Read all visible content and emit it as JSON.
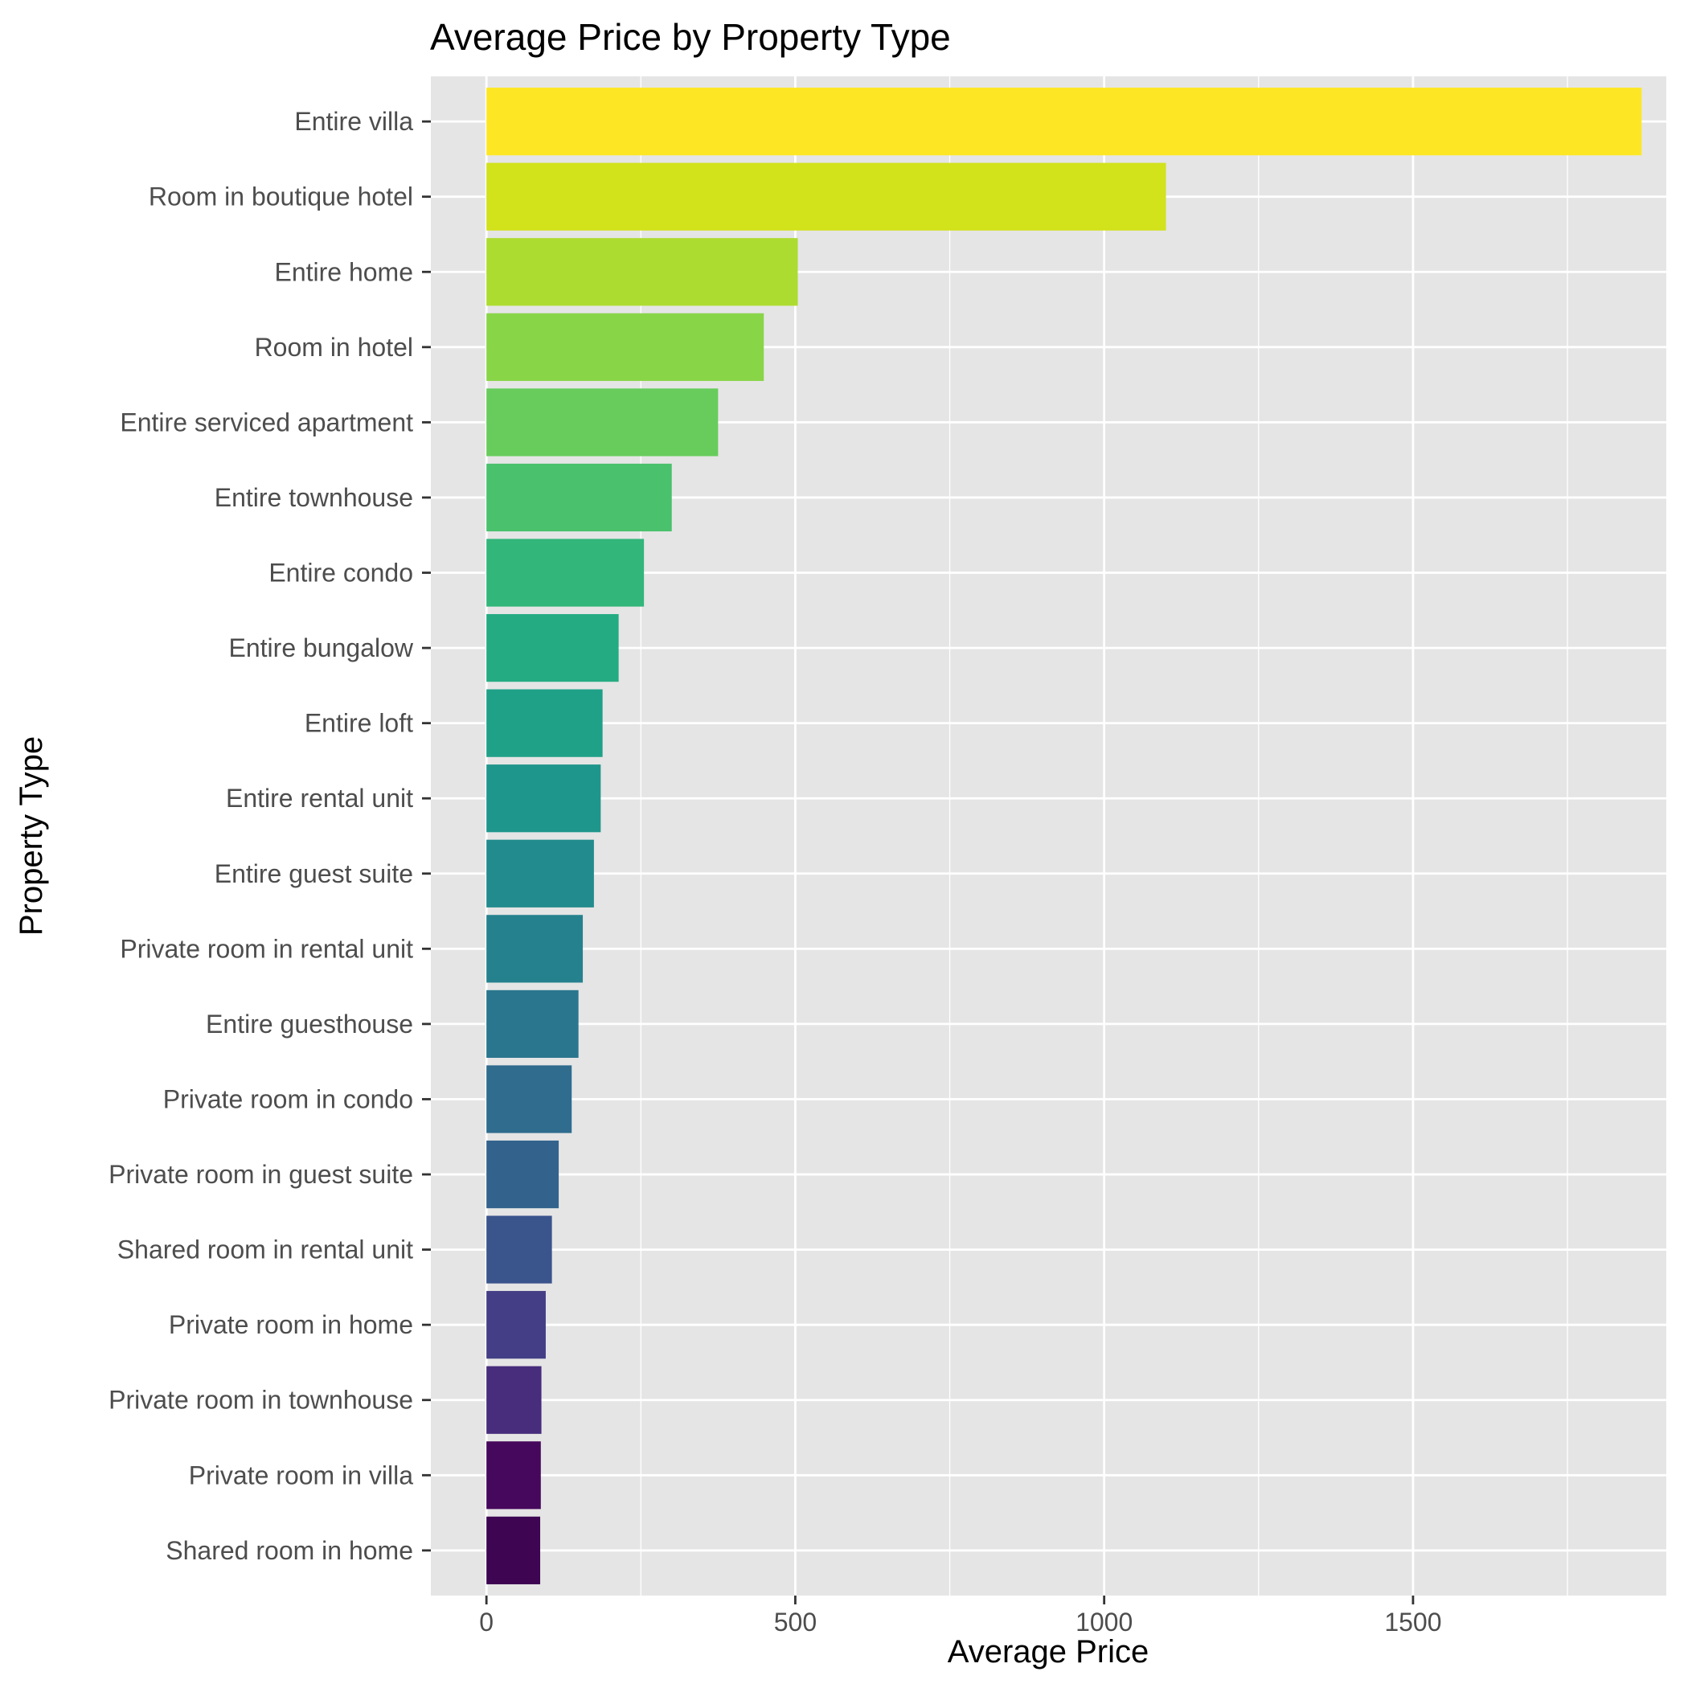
{
  "chart_data": {
    "type": "bar",
    "orientation": "horizontal",
    "title": "Average Price by Property Type",
    "xlabel": "Average Price",
    "ylabel": "Property Type",
    "xlim": [
      -90,
      1910
    ],
    "xticks": [
      0,
      500,
      1000,
      1500
    ],
    "grid": true,
    "legend": "none",
    "categories": [
      "Entire villa",
      "Room in boutique hotel",
      "Entire home",
      "Room in hotel",
      "Entire serviced apartment",
      "Entire townhouse",
      "Entire condo",
      "Entire bungalow",
      "Entire loft",
      "Entire rental unit",
      "Entire guest suite",
      "Private room in rental unit",
      "Entire guesthouse",
      "Private room in condo",
      "Private room in guest suite",
      "Shared room in rental unit",
      "Private room in home",
      "Private room in townhouse",
      "Private room in villa",
      "Shared room in home"
    ],
    "values": [
      1870,
      1100,
      504,
      449,
      375,
      300,
      255,
      214,
      188,
      185,
      174,
      156,
      149,
      138,
      117,
      106,
      96,
      89,
      88,
      87
    ],
    "colors": [
      "#fde725",
      "#d2e21b",
      "#addc30",
      "#89d548",
      "#67cc5c",
      "#4ac16d",
      "#32b67a",
      "#25ab82",
      "#1fa188",
      "#1f968b",
      "#228b8d",
      "#26818e",
      "#2a768e",
      "#2f6c8e",
      "#33638d",
      "#3a548c",
      "#433e85",
      "#472d7b",
      "#46085c",
      "#3d0552"
    ]
  }
}
